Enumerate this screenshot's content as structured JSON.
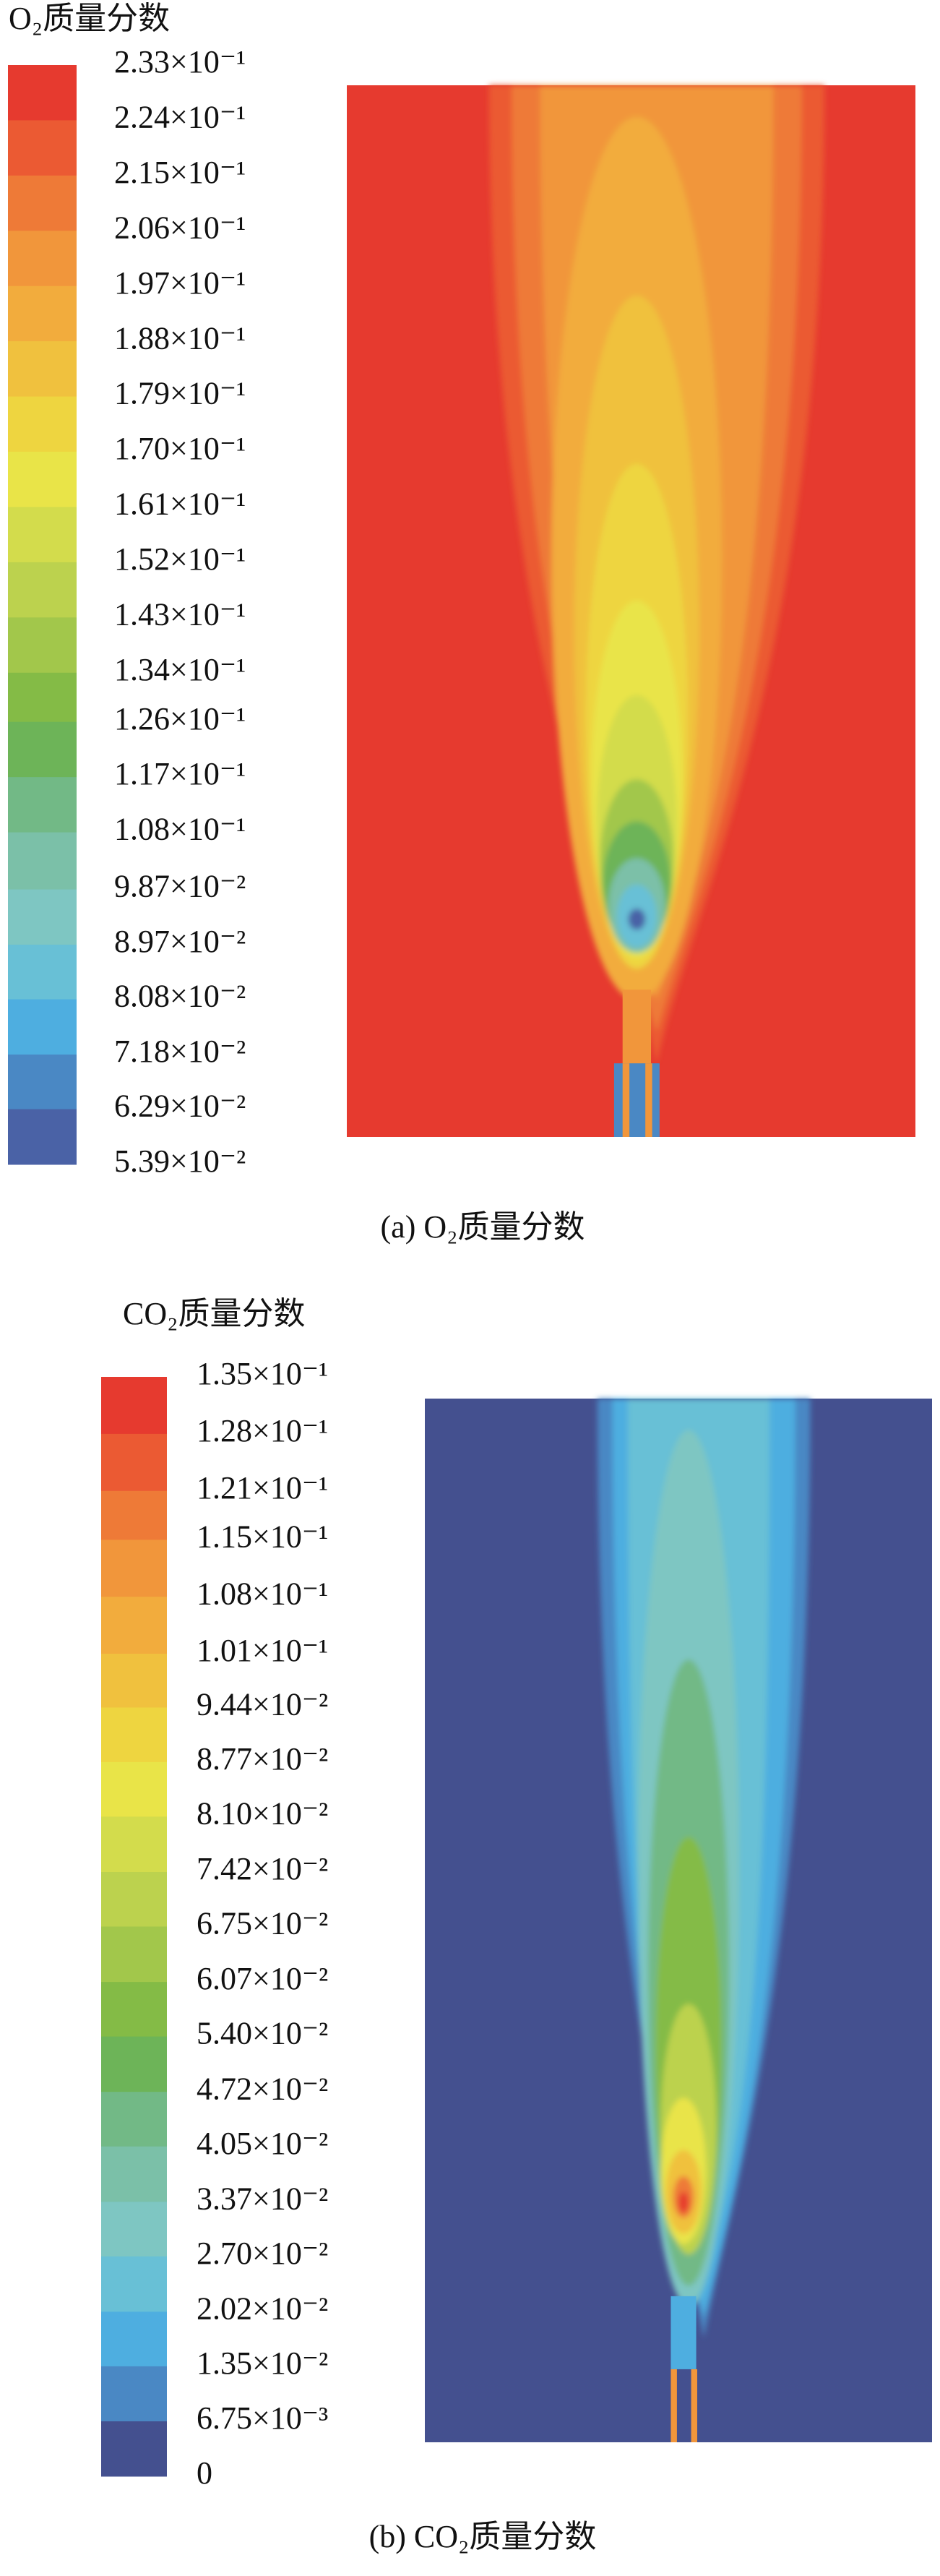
{
  "chart_data": [
    {
      "type": "contour",
      "title": "O₂质量分数",
      "caption": "(a) O₂质量分数",
      "ylim": [
        0.0539,
        0.233
      ],
      "yticks": [
        {
          "value": 0.233,
          "label": "2.33×10⁻¹"
        },
        {
          "value": 0.224,
          "label": "2.24×10⁻¹"
        },
        {
          "value": 0.215,
          "label": "2.15×10⁻¹"
        },
        {
          "value": 0.206,
          "label": "2.06×10⁻¹"
        },
        {
          "value": 0.197,
          "label": "1.97×10⁻¹"
        },
        {
          "value": 0.188,
          "label": "1.88×10⁻¹"
        },
        {
          "value": 0.179,
          "label": "1.79×10⁻¹"
        },
        {
          "value": 0.17,
          "label": "1.70×10⁻¹"
        },
        {
          "value": 0.161,
          "label": "1.61×10⁻¹"
        },
        {
          "value": 0.152,
          "label": "1.52×10⁻¹"
        },
        {
          "value": 0.143,
          "label": "1.43×10⁻¹"
        },
        {
          "value": 0.134,
          "label": "1.34×10⁻¹"
        },
        {
          "value": 0.126,
          "label": "1.26×10⁻¹"
        },
        {
          "value": 0.117,
          "label": "1.17×10⁻¹"
        },
        {
          "value": 0.108,
          "label": "1.08×10⁻¹"
        },
        {
          "value": 0.0987,
          "label": "9.87×10⁻²"
        },
        {
          "value": 0.0897,
          "label": "8.97×10⁻²"
        },
        {
          "value": 0.0808,
          "label": "8.08×10⁻²"
        },
        {
          "value": 0.0718,
          "label": "7.18×10⁻²"
        },
        {
          "value": 0.0629,
          "label": "6.29×10⁻²"
        },
        {
          "value": 0.0539,
          "label": "5.39×10⁻²"
        }
      ],
      "colors": [
        "#e63a2f",
        "#eb5a33",
        "#ee7a37",
        "#f1963b",
        "#f2ac3d",
        "#f0c13e",
        "#eed540",
        "#e9e448",
        "#d3dc4c",
        "#bcd24e",
        "#a2c74b",
        "#84bb46",
        "#6db458",
        "#72b986",
        "#7bc0a8",
        "#7ec6c2",
        "#68c0d6",
        "#4eaee0",
        "#4a88c4",
        "#4a62a6"
      ],
      "background": 0
    },
    {
      "type": "contour",
      "title": "CO₂质量分数",
      "caption": "(b) CO₂质量分数",
      "ylim": [
        0,
        0.135
      ],
      "yticks": [
        {
          "value": 0.135,
          "label": "1.35×10⁻¹"
        },
        {
          "value": 0.128,
          "label": "1.28×10⁻¹"
        },
        {
          "value": 0.121,
          "label": "1.21×10⁻¹"
        },
        {
          "value": 0.115,
          "label": "1.15×10⁻¹"
        },
        {
          "value": 0.108,
          "label": "1.08×10⁻¹"
        },
        {
          "value": 0.101,
          "label": "1.01×10⁻¹"
        },
        {
          "value": 0.0944,
          "label": "9.44×10⁻²"
        },
        {
          "value": 0.0877,
          "label": "8.77×10⁻²"
        },
        {
          "value": 0.081,
          "label": "8.10×10⁻²"
        },
        {
          "value": 0.0742,
          "label": "7.42×10⁻²"
        },
        {
          "value": 0.0675,
          "label": "6.75×10⁻²"
        },
        {
          "value": 0.0607,
          "label": "6.07×10⁻²"
        },
        {
          "value": 0.054,
          "label": "5.40×10⁻²"
        },
        {
          "value": 0.0472,
          "label": "4.72×10⁻²"
        },
        {
          "value": 0.0405,
          "label": "4.05×10⁻²"
        },
        {
          "value": 0.0337,
          "label": "3.37×10⁻²"
        },
        {
          "value": 0.027,
          "label": "2.70×10⁻²"
        },
        {
          "value": 0.0202,
          "label": "2.02×10⁻²"
        },
        {
          "value": 0.0135,
          "label": "1.35×10⁻²"
        },
        {
          "value": 0.00675,
          "label": "6.75×10⁻³"
        },
        0
      ],
      "colors": [
        "#e63a2f",
        "#eb5a33",
        "#ee7a37",
        "#f1963b",
        "#f2ac3d",
        "#f0c13e",
        "#eed540",
        "#e9e448",
        "#d3dc4c",
        "#bcd24e",
        "#a2c74b",
        "#84bb46",
        "#6db458",
        "#72b986",
        "#7bc0a8",
        "#7ec6c2",
        "#68c0d6",
        "#4eaee0",
        "#4a88c4",
        "#44508f"
      ],
      "background": 19
    }
  ]
}
